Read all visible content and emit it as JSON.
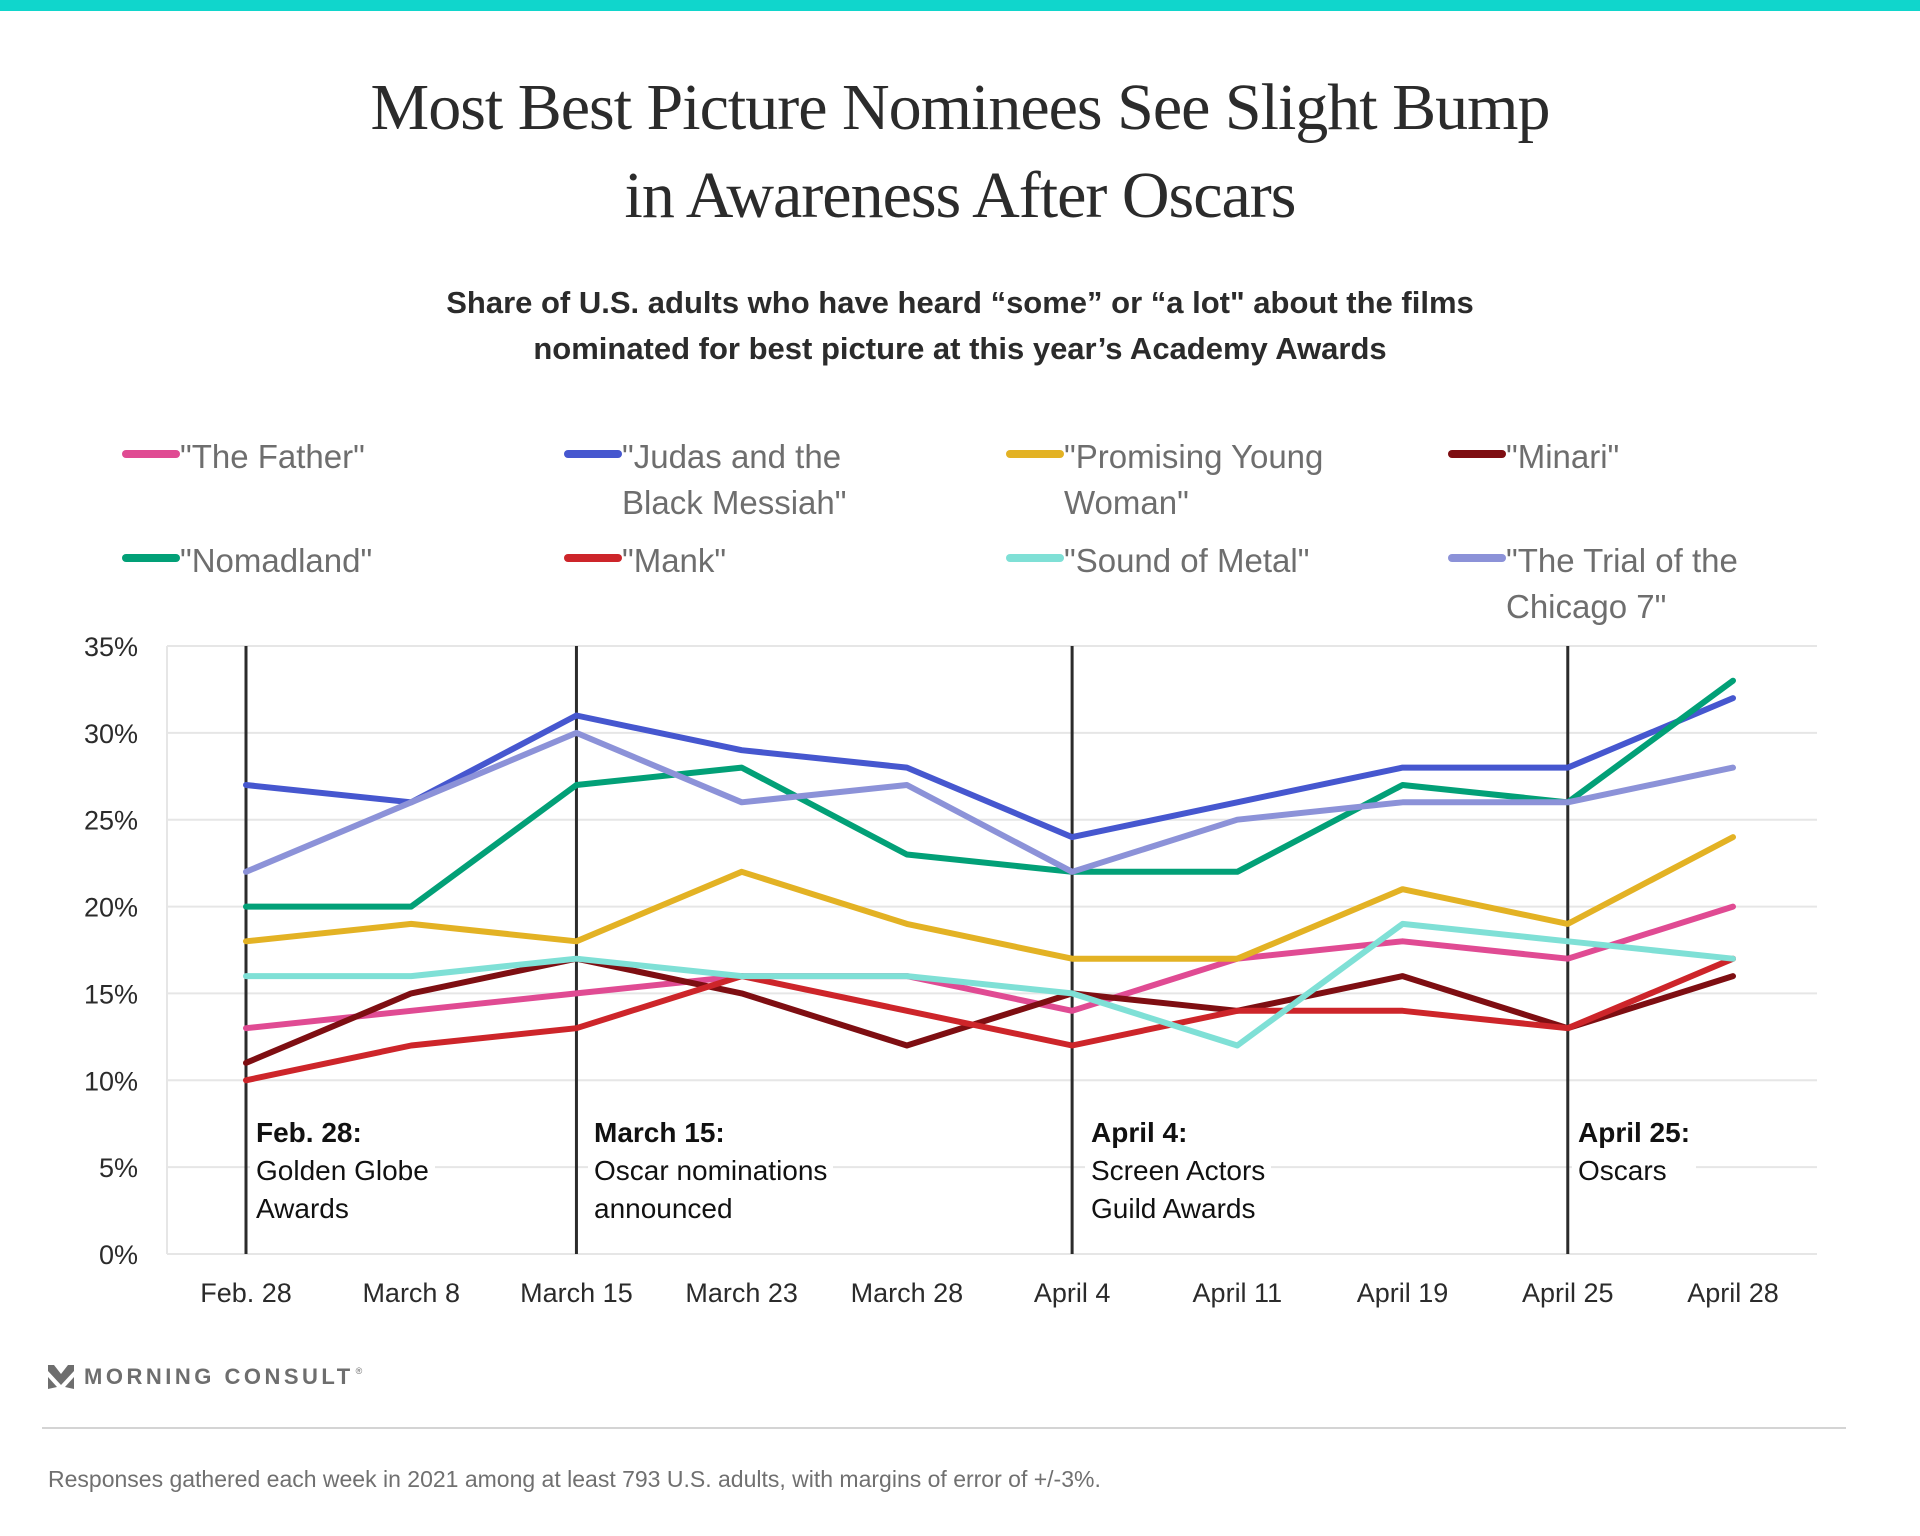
{
  "header": {
    "title_lines": [
      "Most Best Picture Nominees See Slight Bump",
      "in Awareness After Oscars"
    ],
    "subtitle_lines": [
      "Share of U.S. adults who have heard “some” or “a lot\" about the films",
      "nominated for best picture at this year’s Academy Awards"
    ],
    "accent_color": "#10D6CC"
  },
  "legend": [
    {
      "label": "\"The Father\"",
      "color": "#E04B93"
    },
    {
      "label": "\"Judas and the Black Messiah\"",
      "color": "#4657CF"
    },
    {
      "label": "\"Promising Young Woman\"",
      "color": "#E3B224"
    },
    {
      "label": "\"Minari\"",
      "color": "#7E0E12"
    },
    {
      "label": "\"Nomadland\"",
      "color": "#02A077"
    },
    {
      "label": "\"Mank\"",
      "color": "#CD252A"
    },
    {
      "label": "\"Sound of Metal\"",
      "color": "#7FE0D6"
    },
    {
      "label": "\"The Trial of the Chicago 7\"",
      "color": "#8C92D8"
    }
  ],
  "chart_data": {
    "type": "line",
    "title": "Most Best Picture Nominees See Slight Bump in Awareness After Oscars",
    "subtitle": "Share of U.S. adults who have heard “some” or “a lot\" about the films nominated for best picture at this year’s Academy Awards",
    "xlabel": "",
    "ylabel": "",
    "x": [
      "Feb. 28",
      "March 8",
      "March 15",
      "March 23",
      "March 28",
      "April 4",
      "April 11",
      "April 19",
      "April 25",
      "April 28"
    ],
    "ylim": [
      0,
      35
    ],
    "yticks": [
      0,
      5,
      10,
      15,
      20,
      25,
      30,
      35
    ],
    "ytick_labels": [
      "0%",
      "5%",
      "10%",
      "15%",
      "20%",
      "25%",
      "30%",
      "35%"
    ],
    "grid": true,
    "legend_position": "top",
    "series": [
      {
        "name": "\"The Father\"",
        "color": "#E04B93",
        "values": [
          13,
          14,
          15,
          16,
          16,
          14,
          17,
          18,
          17,
          20
        ]
      },
      {
        "name": "\"Judas and the Black Messiah\"",
        "color": "#4657CF",
        "values": [
          27,
          26,
          31,
          29,
          28,
          24,
          26,
          28,
          28,
          32
        ]
      },
      {
        "name": "\"Promising Young Woman\"",
        "color": "#E3B224",
        "values": [
          18,
          19,
          18,
          22,
          19,
          17,
          17,
          21,
          19,
          24
        ]
      },
      {
        "name": "\"Minari\"",
        "color": "#7E0E12",
        "values": [
          11,
          15,
          17,
          15,
          12,
          15,
          14,
          16,
          13,
          16
        ]
      },
      {
        "name": "\"Nomadland\"",
        "color": "#02A077",
        "values": [
          20,
          20,
          27,
          28,
          23,
          22,
          22,
          27,
          26,
          33
        ]
      },
      {
        "name": "\"Mank\"",
        "color": "#CD252A",
        "values": [
          10,
          12,
          13,
          16,
          14,
          12,
          14,
          14,
          13,
          17
        ]
      },
      {
        "name": "\"Sound of Metal\"",
        "color": "#7FE0D6",
        "values": [
          16,
          16,
          17,
          16,
          16,
          15,
          12,
          19,
          18,
          17
        ]
      },
      {
        "name": "\"The Trial of the Chicago 7\"",
        "color": "#8C92D8",
        "values": [
          22,
          26,
          30,
          26,
          27,
          22,
          25,
          26,
          26,
          28
        ]
      }
    ],
    "annotations": [
      {
        "x": "Feb. 28",
        "date": "Feb. 28:",
        "text": "Golden Globe\nAwards"
      },
      {
        "x": "March 15",
        "date": "March 15:",
        "text": "Oscar nominations\nannounced"
      },
      {
        "x": "April 4",
        "date": "April 4:",
        "text": "Screen Actors\nGuild Awards"
      },
      {
        "x": "April 25",
        "date": "April 25:",
        "text": "Oscars"
      }
    ]
  },
  "footer": {
    "brand": "MORNING CONSULT",
    "brand_mark": "®",
    "logo_icon": "morning-consult-chevron-icon",
    "note": "Responses gathered each week in 2021 among at least 793 U.S. adults, with margins of error of +/-3%."
  }
}
